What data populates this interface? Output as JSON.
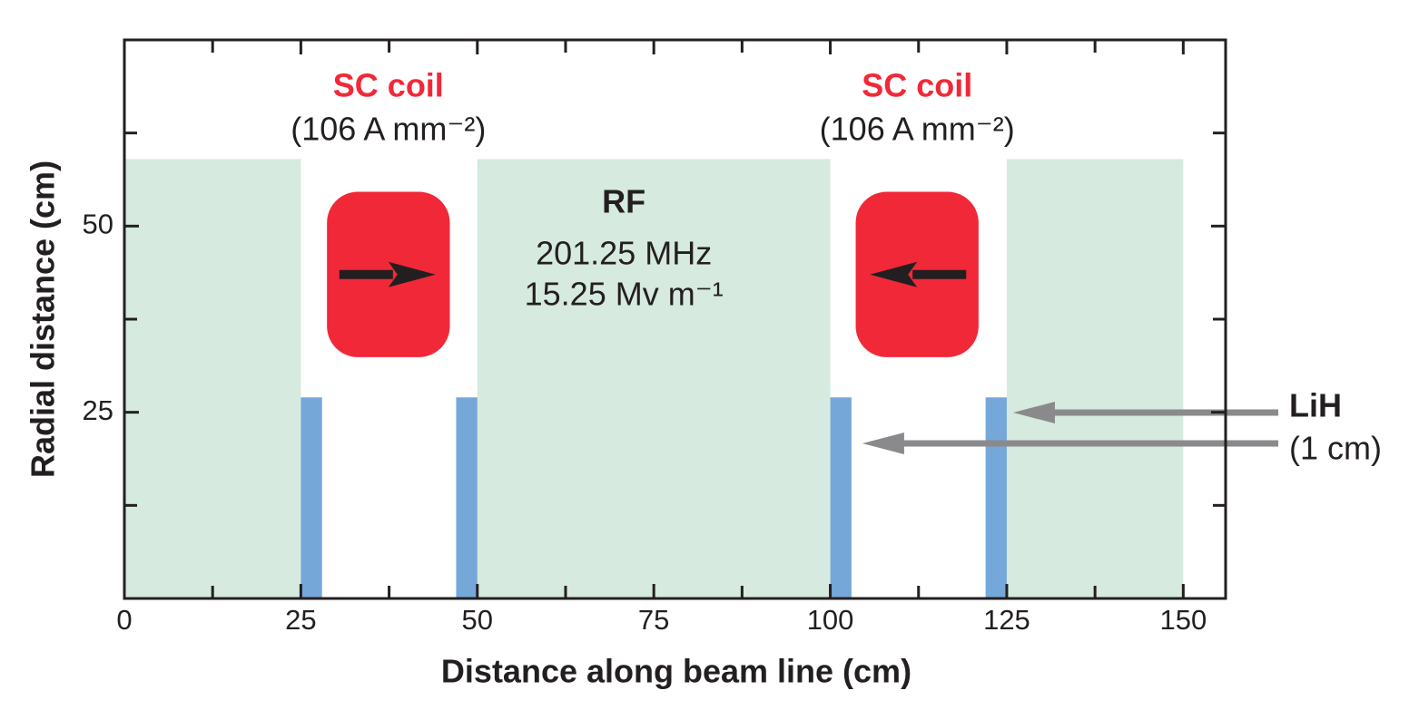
{
  "chart_data": {
    "type": "schematic",
    "x_label": "Distance along beam line (cm)",
    "y_label": "Radial distance (cm)",
    "xlim": [
      0,
      156
    ],
    "ylim": [
      0,
      75
    ],
    "xticks": [
      0,
      25,
      50,
      75,
      100,
      125,
      150
    ],
    "xminorticks": [
      12.5,
      37.5,
      62.5,
      87.5,
      112.5,
      137.5
    ],
    "yticks": [
      25,
      50
    ],
    "yminorticks": [
      12.5,
      37.5,
      62.5
    ],
    "rf_color": "#d6eadf",
    "rf_regions": [
      {
        "x": [
          0,
          25
        ],
        "height": 59
      },
      {
        "x": [
          50,
          100
        ],
        "height": 59
      },
      {
        "x": [
          125,
          150
        ],
        "height": 59
      }
    ],
    "rf": {
      "label": "RF",
      "frequency": "201.25 MHz",
      "gradient": "15.25 Mv m⁻¹"
    },
    "coil_color": "#f12838",
    "coils": [
      {
        "label": "SC coil",
        "current": "(106 A mm⁻²)",
        "x": [
          28.7,
          46.1
        ],
        "y": [
          32.4,
          54.6
        ],
        "direction": "right"
      },
      {
        "label": "SC coil",
        "current": "(106 A mm⁻²)",
        "x": [
          103.6,
          121
        ],
        "y": [
          32.4,
          54.6
        ],
        "direction": "left"
      }
    ],
    "absorbers": {
      "name": "LiH",
      "thickness": "(1 cm)",
      "color": "#76a7d9",
      "height": 27,
      "x": [
        [
          25,
          28
        ],
        [
          47,
          50
        ],
        [
          100,
          103
        ],
        [
          122,
          125
        ]
      ]
    }
  }
}
